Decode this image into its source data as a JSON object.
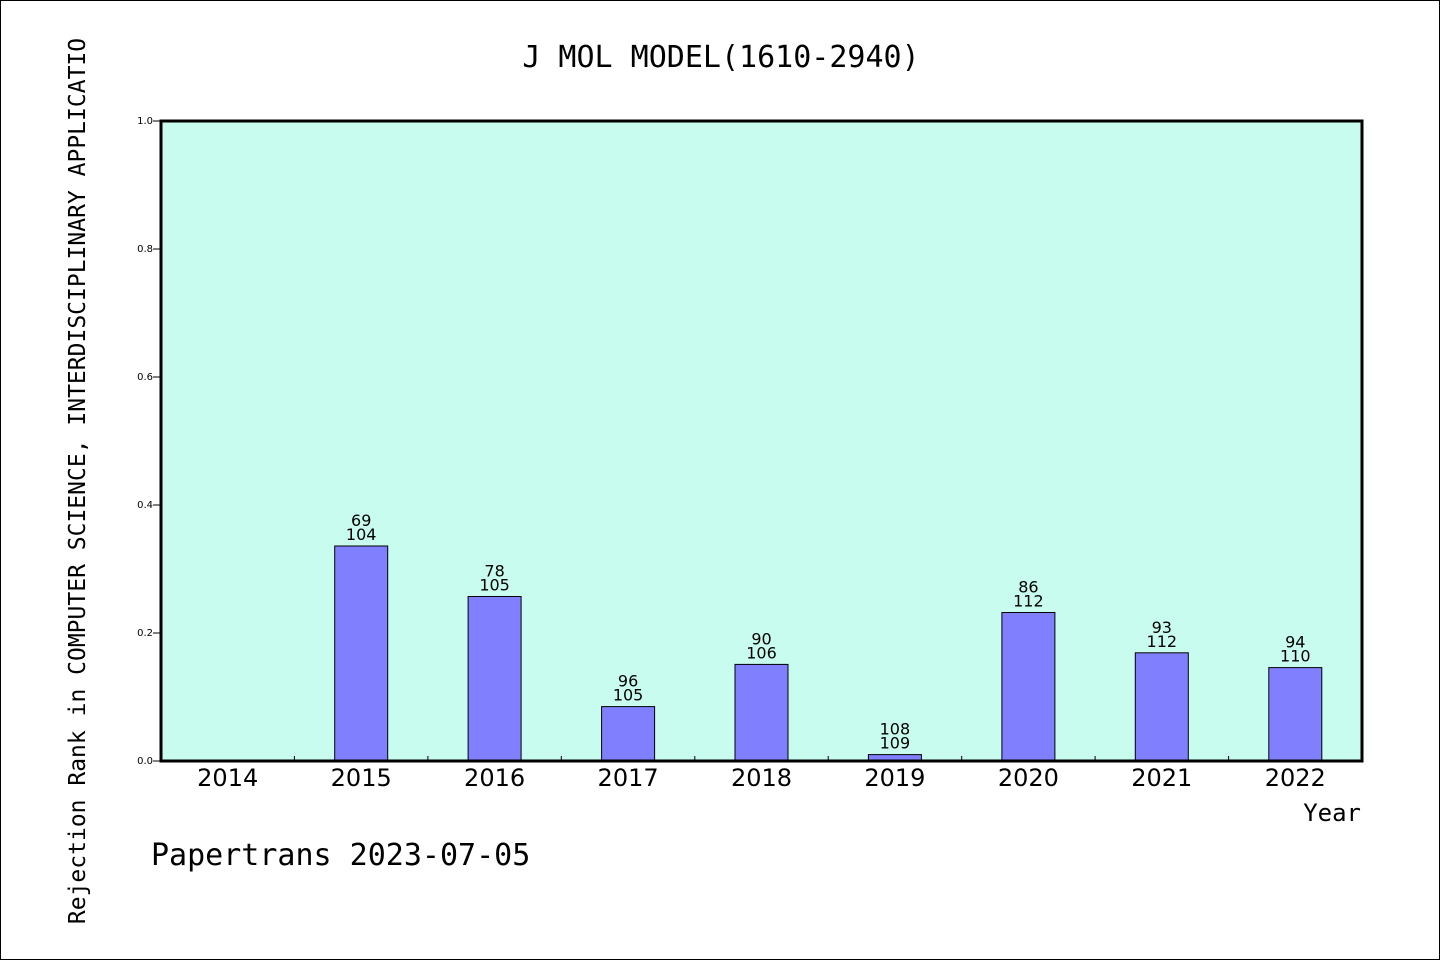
{
  "chart_data": {
    "type": "bar",
    "title": "J MOL MODEL(1610-2940)",
    "ylabel": "Rejection Rank in COMPUTER SCIENCE, INTERDISCIPLINARY APPLICATIO",
    "xlabel": "Year",
    "categories": [
      "2014",
      "2015",
      "2016",
      "2017",
      "2018",
      "2019",
      "2020",
      "2021",
      "2022"
    ],
    "values": [
      0,
      0.336,
      0.257,
      0.085,
      0.151,
      0.01,
      0.232,
      0.169,
      0.146
    ],
    "labels_top": [
      "",
      "69",
      "78",
      "96",
      "90",
      "108",
      "86",
      "93",
      "94"
    ],
    "labels_bottom": [
      "",
      "104",
      "105",
      "105",
      "106",
      "109",
      "112",
      "112",
      "110"
    ],
    "ylim": [
      0,
      1.0
    ],
    "yticks": [
      "0.0",
      "0.2",
      "0.4",
      "0.6",
      "0.8",
      "1.0"
    ],
    "grid": false,
    "colors": {
      "plot_background": "#c8fcee",
      "bar_fill": "#8080ff",
      "bar_stroke": "#000000"
    }
  },
  "footer": "Papertrans 2023-07-05"
}
